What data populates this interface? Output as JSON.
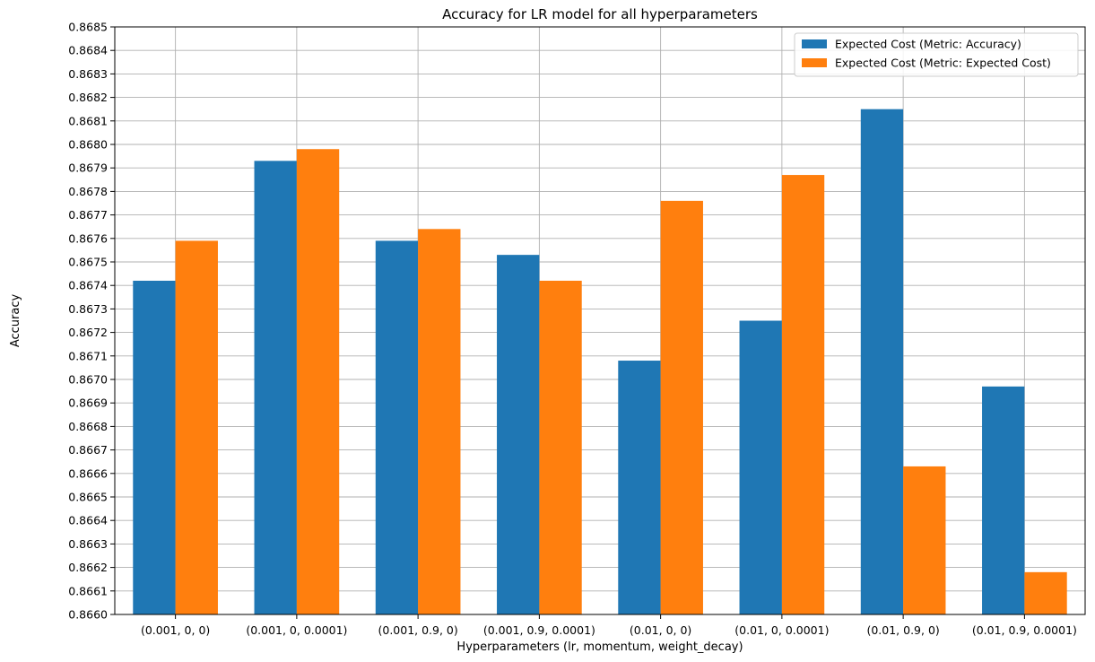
{
  "chart_data": {
    "type": "bar",
    "title": "Accuracy for LR model for all hyperparameters",
    "xlabel": "Hyperparameters (lr, momentum, weight_decay)",
    "ylabel": "Accuracy",
    "ylim": [
      0.866,
      0.8685
    ],
    "ytick_step": 0.0001,
    "ytick_decimals": 4,
    "grid": true,
    "legend_position": "top-right",
    "categories": [
      "(0.001, 0, 0)",
      "(0.001, 0, 0.0001)",
      "(0.001, 0.9, 0)",
      "(0.001, 0.9, 0.0001)",
      "(0.01, 0, 0)",
      "(0.01, 0, 0.0001)",
      "(0.01, 0.9, 0)",
      "(0.01, 0.9, 0.0001)"
    ],
    "series": [
      {
        "name": "Expected Cost (Metric: Accuracy)",
        "color": "#1f77b4",
        "values": [
          0.86742,
          0.86793,
          0.86759,
          0.86753,
          0.86708,
          0.86725,
          0.86815,
          0.86697
        ]
      },
      {
        "name": "Expected Cost (Metric: Expected Cost)",
        "color": "#ff7f0e",
        "values": [
          0.86759,
          0.86798,
          0.86764,
          0.86742,
          0.86776,
          0.86787,
          0.86663,
          0.86618
        ]
      }
    ]
  }
}
